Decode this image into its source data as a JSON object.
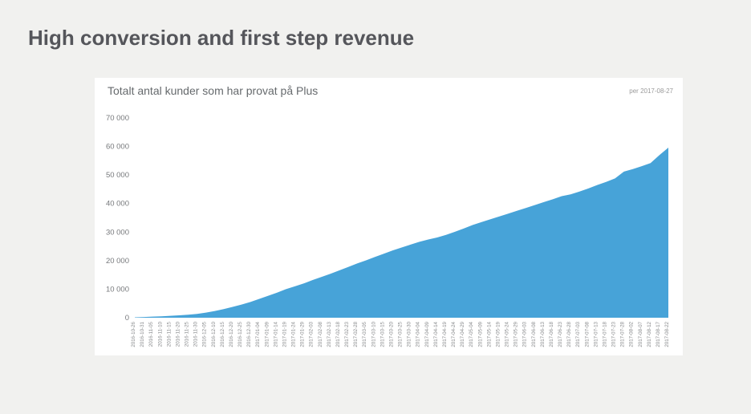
{
  "page": {
    "title": "High conversion and first step revenue"
  },
  "chart_data": {
    "type": "area",
    "title": "Totalt antal kunder som har provat på Plus",
    "per_label": "per 2017-08-27",
    "color": "#47a3d8",
    "grid": false,
    "legend_position": "none",
    "ylim": [
      0,
      70000
    ],
    "yticks": [
      {
        "value": 0,
        "label": "0"
      },
      {
        "value": 10000,
        "label": "10 000"
      },
      {
        "value": 20000,
        "label": "20 000"
      },
      {
        "value": 30000,
        "label": "30 000"
      },
      {
        "value": 40000,
        "label": "40 000"
      },
      {
        "value": 50000,
        "label": "50 000"
      },
      {
        "value": 60000,
        "label": "60 000"
      },
      {
        "value": 70000,
        "label": "70 000"
      }
    ],
    "x": [
      "2016-10-26",
      "2016-10-31",
      "2016-11-05",
      "2016-11-10",
      "2016-11-15",
      "2016-11-20",
      "2016-11-25",
      "2016-11-30",
      "2016-12-05",
      "2016-12-10",
      "2016-12-15",
      "2016-12-20",
      "2016-12-25",
      "2016-12-30",
      "2017-01-04",
      "2017-01-09",
      "2017-01-14",
      "2017-01-19",
      "2017-01-24",
      "2017-01-29",
      "2017-02-03",
      "2017-02-08",
      "2017-02-13",
      "2017-02-18",
      "2017-02-23",
      "2017-02-28",
      "2017-03-05",
      "2017-03-10",
      "2017-03-15",
      "2017-03-20",
      "2017-03-25",
      "2017-03-30",
      "2017-04-04",
      "2017-04-09",
      "2017-04-14",
      "2017-04-19",
      "2017-04-24",
      "2017-04-29",
      "2017-05-04",
      "2017-05-09",
      "2017-05-14",
      "2017-05-19",
      "2017-05-24",
      "2017-05-29",
      "2017-06-03",
      "2017-06-08",
      "2017-06-13",
      "2017-06-18",
      "2017-06-23",
      "2017-06-28",
      "2017-07-03",
      "2017-07-08",
      "2017-07-13",
      "2017-07-18",
      "2017-07-23",
      "2017-07-28",
      "2017-08-02",
      "2017-08-07",
      "2017-08-12",
      "2017-08-17",
      "2017-08-22"
    ],
    "values": [
      150,
      250,
      380,
      520,
      680,
      850,
      1050,
      1350,
      1800,
      2350,
      3000,
      3800,
      4600,
      5500,
      6600,
      7700,
      8800,
      10000,
      11000,
      12000,
      13200,
      14300,
      15400,
      16600,
      17800,
      19000,
      20100,
      21300,
      22400,
      23600,
      24600,
      25600,
      26600,
      27400,
      28100,
      29000,
      30100,
      31300,
      32500,
      33500,
      34500,
      35500,
      36500,
      37500,
      38500,
      39500,
      40500,
      41500,
      42600,
      43200,
      44200,
      45300,
      46500,
      47600,
      48800,
      51200,
      52100,
      53100,
      54200,
      57000,
      59600
    ]
  }
}
